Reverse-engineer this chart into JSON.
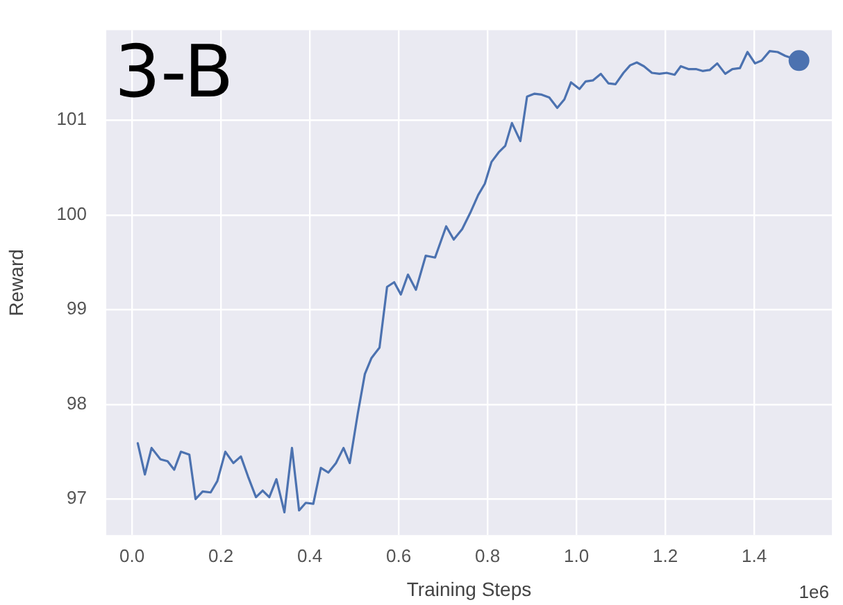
{
  "chart_data": {
    "type": "line",
    "title": "3-B",
    "xlabel": "Training Steps",
    "ylabel": "Reward",
    "annotations": [
      "1e6"
    ],
    "xlim": [
      -0.058,
      1.575
    ],
    "ylim": [
      96.62,
      101.95
    ],
    "xticks": [
      {
        "value": 0,
        "label": "0.0"
      },
      0.2,
      0.4,
      0.6,
      0.8,
      {
        "value": 1,
        "label": "1.0"
      },
      1.2,
      1.4
    ],
    "yticks": [
      97,
      98,
      99,
      100,
      101
    ],
    "grid": true,
    "legend": false,
    "marker": "none",
    "line_style": "solid",
    "series": [
      {
        "color": "#4c72b0",
        "x": [
          0.013,
          0.029,
          0.044,
          0.064,
          0.08,
          0.095,
          0.11,
          0.129,
          0.143,
          0.159,
          0.177,
          0.192,
          0.21,
          0.228,
          0.245,
          0.261,
          0.279,
          0.294,
          0.309,
          0.325,
          0.343,
          0.36,
          0.376,
          0.391,
          0.408,
          0.425,
          0.442,
          0.459,
          0.476,
          0.49,
          0.508,
          0.524,
          0.539,
          0.557,
          0.574,
          0.59,
          0.605,
          0.621,
          0.639,
          0.661,
          0.682,
          0.707,
          0.724,
          0.743,
          0.761,
          0.779,
          0.794,
          0.809,
          0.825,
          0.84,
          0.855,
          0.874,
          0.889,
          0.906,
          0.922,
          0.939,
          0.957,
          0.973,
          0.988,
          1.007,
          1.021,
          1.037,
          1.055,
          1.072,
          1.088,
          1.106,
          1.121,
          1.136,
          1.152,
          1.17,
          1.187,
          1.203,
          1.221,
          1.235,
          1.252,
          1.269,
          1.284,
          1.3,
          1.317,
          1.335,
          1.351,
          1.368,
          1.385,
          1.402,
          1.417,
          1.435,
          1.453,
          1.47,
          1.501
        ],
        "values": [
          97.59,
          97.26,
          97.54,
          97.42,
          97.4,
          97.31,
          97.5,
          97.47,
          97.0,
          97.08,
          97.07,
          97.19,
          97.5,
          97.38,
          97.45,
          97.24,
          97.02,
          97.09,
          97.02,
          97.21,
          96.86,
          97.54,
          96.88,
          96.96,
          96.95,
          97.33,
          97.28,
          97.38,
          97.54,
          97.38,
          97.9,
          98.32,
          98.49,
          98.6,
          99.24,
          99.29,
          99.16,
          99.37,
          99.21,
          99.57,
          99.55,
          99.88,
          99.74,
          99.85,
          100.02,
          100.21,
          100.33,
          100.56,
          100.66,
          100.73,
          100.97,
          100.78,
          101.25,
          101.28,
          101.27,
          101.24,
          101.13,
          101.22,
          101.4,
          101.33,
          101.41,
          101.42,
          101.49,
          101.39,
          101.38,
          101.5,
          101.58,
          101.61,
          101.57,
          101.5,
          101.49,
          101.5,
          101.48,
          101.57,
          101.54,
          101.54,
          101.52,
          101.53,
          101.6,
          101.49,
          101.54,
          101.55,
          101.72,
          101.6,
          101.63,
          101.73,
          101.72,
          101.68,
          101.63
        ]
      },
      {
        "type": "scatter",
        "marker": "circle",
        "color": "#4c72b0",
        "x": [
          1.501
        ],
        "values": [
          101.63
        ]
      }
    ]
  }
}
